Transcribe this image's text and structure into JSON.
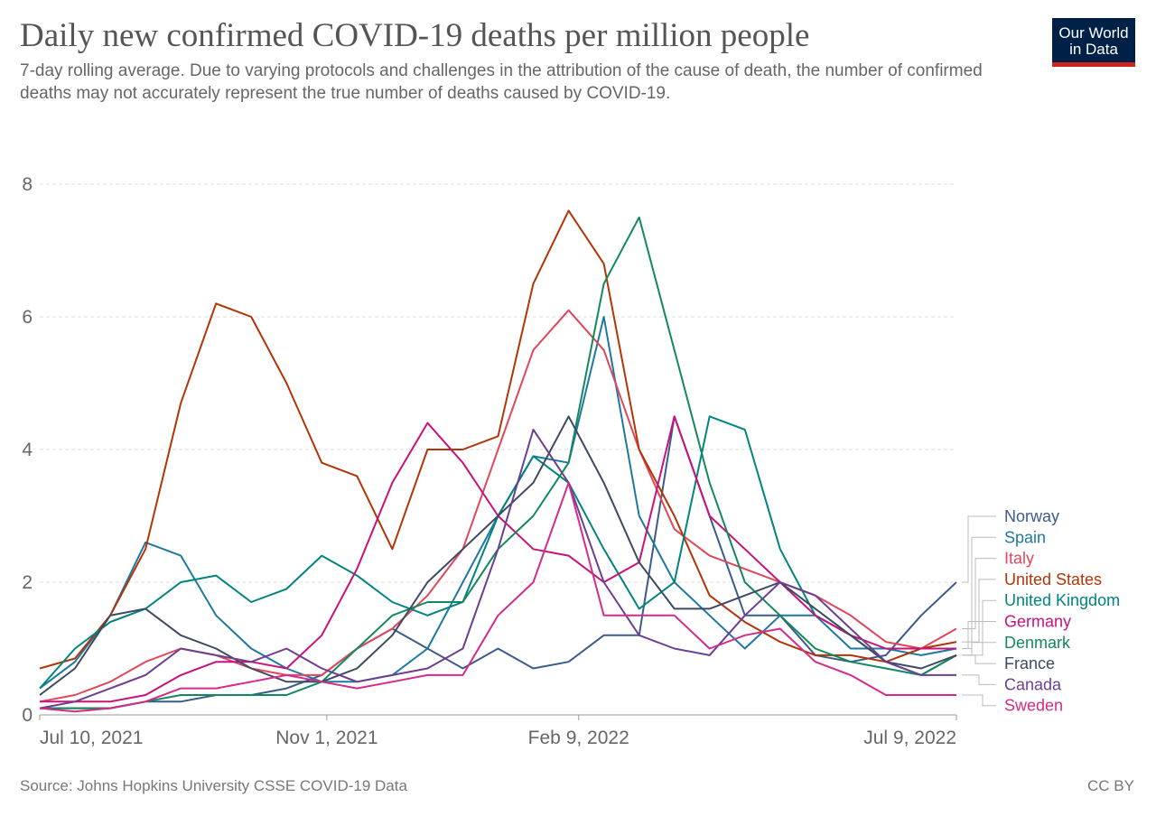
{
  "header": {
    "title": "Daily new confirmed COVID-19 deaths per million people",
    "subtitle": "7-day rolling average. Due to varying protocols and challenges in the attribution of the cause of death, the number of confirmed deaths may not accurately represent the true number of deaths caused by COVID-19.",
    "logo_text": "Our World in Data"
  },
  "footer": {
    "source": "Source: Johns Hopkins University CSSE COVID-19 Data",
    "license": "CC BY"
  },
  "chart_data": {
    "type": "line",
    "title": "Daily new confirmed COVID-19 deaths per million people",
    "xlim": [
      "2021-07-10",
      "2022-07-09"
    ],
    "ylim": [
      0,
      8.9
    ],
    "grid": "horizontal dashed",
    "legend_placement": "right (line-end labels)",
    "x_ticks": [
      {
        "date": "2021-07-10",
        "label": "Jul 10, 2021"
      },
      {
        "date": "2021-11-01",
        "label": "Nov 1, 2021"
      },
      {
        "date": "2022-02-09",
        "label": "Feb 9, 2022"
      },
      {
        "date": "2022-07-09",
        "label": "Jul 9, 2022"
      }
    ],
    "y_ticks": [
      0,
      2,
      4,
      6,
      8
    ],
    "x": [
      "2021-07-10",
      "2021-07-24",
      "2021-08-07",
      "2021-08-21",
      "2021-09-04",
      "2021-09-18",
      "2021-10-02",
      "2021-10-16",
      "2021-10-30",
      "2021-11-13",
      "2021-11-27",
      "2021-12-11",
      "2021-12-25",
      "2022-01-08",
      "2022-01-22",
      "2022-02-05",
      "2022-02-19",
      "2022-03-05",
      "2022-03-19",
      "2022-04-02",
      "2022-04-16",
      "2022-04-30",
      "2022-05-14",
      "2022-05-28",
      "2022-06-11",
      "2022-06-25",
      "2022-07-09"
    ],
    "series": [
      {
        "name": "Norway",
        "color": "#3c5b8c",
        "values": [
          0.1,
          0.1,
          0.1,
          0.2,
          0.2,
          0.3,
          0.3,
          0.4,
          0.6,
          1.0,
          1.3,
          1.0,
          0.7,
          1.0,
          0.7,
          0.8,
          1.2,
          1.2,
          4.5,
          3.0,
          1.5,
          1.5,
          0.9,
          0.8,
          0.9,
          1.5,
          2.0
        ]
      },
      {
        "name": "Spain",
        "color": "#1f78a0",
        "values": [
          0.4,
          0.8,
          1.5,
          2.6,
          2.4,
          1.5,
          1.0,
          0.7,
          0.5,
          0.5,
          0.6,
          1.0,
          2.0,
          3.0,
          3.9,
          3.8,
          6.0,
          3.0,
          2.0,
          1.5,
          1.0,
          1.5,
          1.5,
          1.0,
          1.0,
          0.9,
          1.0
        ]
      },
      {
        "name": "Italy",
        "color": "#e0475a",
        "values": [
          0.2,
          0.3,
          0.5,
          0.8,
          1.0,
          0.9,
          0.7,
          0.6,
          0.6,
          1.0,
          1.3,
          1.8,
          2.5,
          4.0,
          5.5,
          6.1,
          5.5,
          4.0,
          2.8,
          2.4,
          2.2,
          2.0,
          1.8,
          1.5,
          1.1,
          1.0,
          1.3
        ]
      },
      {
        "name": "United States",
        "color": "#b13507",
        "values": [
          0.7,
          0.85,
          1.5,
          2.5,
          4.7,
          6.2,
          6.0,
          5.0,
          3.8,
          3.6,
          2.5,
          4.0,
          4.0,
          4.2,
          6.5,
          7.6,
          6.8,
          4.0,
          3.0,
          1.8,
          1.4,
          1.1,
          0.9,
          0.9,
          0.8,
          1.0,
          1.1
        ]
      },
      {
        "name": "United Kingdom",
        "color": "#00847e",
        "values": [
          0.4,
          1.0,
          1.4,
          1.6,
          2.0,
          2.1,
          1.7,
          1.9,
          2.4,
          2.1,
          1.7,
          1.5,
          1.7,
          3.0,
          3.9,
          3.5,
          2.5,
          1.6,
          2.0,
          4.5,
          4.3,
          2.5,
          1.5,
          1.2,
          0.8,
          0.6,
          0.9
        ]
      },
      {
        "name": "Germany",
        "color": "#c8127a",
        "values": [
          0.2,
          0.2,
          0.2,
          0.3,
          0.6,
          0.8,
          0.8,
          0.7,
          1.2,
          2.2,
          3.5,
          4.4,
          3.8,
          3.0,
          2.5,
          2.4,
          2.0,
          2.3,
          4.5,
          3.0,
          2.5,
          2.0,
          1.5,
          1.2,
          1.0,
          1.0,
          1.0
        ]
      },
      {
        "name": "Denmark",
        "color": "#12895a",
        "values": [
          0.1,
          0.1,
          0.1,
          0.2,
          0.3,
          0.3,
          0.3,
          0.3,
          0.5,
          1.0,
          1.5,
          1.7,
          1.7,
          2.5,
          3.0,
          3.8,
          6.5,
          7.5,
          5.5,
          3.5,
          2.0,
          1.5,
          1.0,
          0.8,
          0.7,
          0.6,
          0.9
        ]
      },
      {
        "name": "France",
        "color": "#3d4a62",
        "values": [
          0.3,
          0.7,
          1.5,
          1.6,
          1.2,
          1.0,
          0.7,
          0.5,
          0.5,
          0.7,
          1.2,
          2.0,
          2.5,
          3.0,
          3.5,
          4.5,
          3.5,
          2.3,
          1.6,
          1.6,
          1.8,
          2.0,
          1.6,
          1.2,
          0.8,
          0.7,
          0.9
        ]
      },
      {
        "name": "Canada",
        "color": "#6d3e91",
        "values": [
          0.1,
          0.2,
          0.4,
          0.6,
          1.0,
          0.9,
          0.8,
          1.0,
          0.7,
          0.5,
          0.6,
          0.7,
          1.0,
          2.5,
          4.3,
          3.5,
          2.0,
          1.2,
          1.0,
          0.9,
          1.5,
          2.0,
          1.8,
          1.3,
          0.8,
          0.6,
          0.6
        ]
      },
      {
        "name": "Sweden",
        "color": "#d42b8a",
        "values": [
          0.1,
          0.05,
          0.1,
          0.2,
          0.4,
          0.4,
          0.5,
          0.6,
          0.5,
          0.4,
          0.5,
          0.6,
          0.6,
          1.5,
          2.0,
          3.5,
          1.5,
          1.5,
          1.5,
          1.0,
          1.2,
          1.3,
          0.8,
          0.6,
          0.3,
          0.3,
          0.3
        ]
      }
    ]
  }
}
